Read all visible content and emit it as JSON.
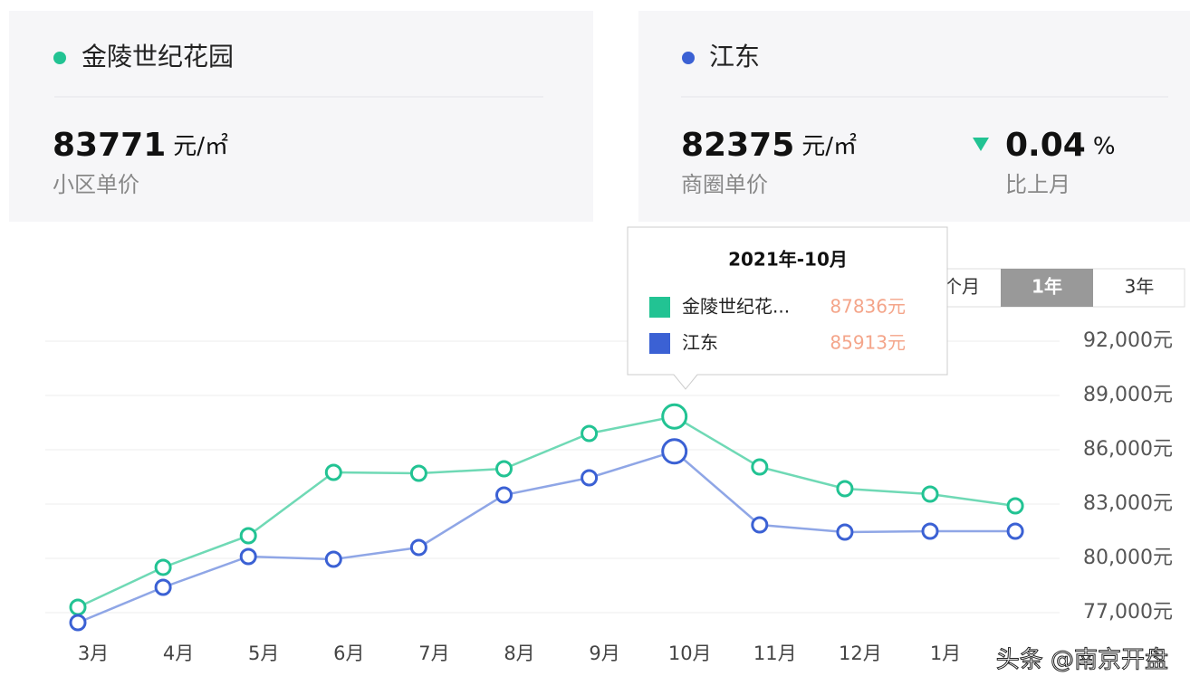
{
  "cards": [
    {
      "price": 83771,
      "unit": "元/㎡",
      "label": "小区单价"
    },
    {
      "price": 82375,
      "unit": "元/㎡",
      "label": "商圈单价",
      "change": 0.04,
      "change_unit": "%",
      "change_label": "比上月"
    }
  ],
  "range_buttons": [
    "个月",
    "1年",
    "3年"
  ],
  "watermark": "头条 @南京开盘",
  "chart_data": {
    "type": "line",
    "categories": [
      "3月",
      "4月",
      "5月",
      "6月",
      "7月",
      "8月",
      "9月",
      "10月",
      "11月",
      "12月",
      "1月",
      null
    ],
    "series": [
      {
        "name": "金陵世纪花园",
        "color": "#22c393",
        "line_color": "#6fd9b5",
        "values": [
          77300,
          79500,
          81250,
          84750,
          84700,
          84950,
          86900,
          87836,
          85050,
          83850,
          83550,
          82900
        ],
        "value_labels": [
          null,
          null,
          null,
          null,
          null,
          null,
          null,
          "87836元",
          null,
          null,
          null,
          null
        ]
      },
      {
        "name": "江东",
        "color": "#3b61d4",
        "line_color": "#8fa6e6",
        "values": [
          76450,
          78400,
          80100,
          79950,
          80600,
          83500,
          84450,
          85913,
          81850,
          81450,
          81500,
          81500
        ],
        "value_labels": [
          null,
          null,
          null,
          null,
          null,
          null,
          null,
          "85913元",
          null,
          null,
          null,
          null
        ]
      }
    ],
    "tooltip": {
      "title": "2021年-10月",
      "items": [
        "金陵世纪花...",
        "江东"
      ]
    },
    "ylim": [
      76000,
      92000
    ],
    "yticks": [
      {
        "value": 77000,
        "label": "77,000元"
      },
      {
        "value": 80000,
        "label": "80,000元"
      },
      {
        "value": 83000,
        "label": "83,000元"
      },
      {
        "value": 86000,
        "label": "86,000元"
      },
      {
        "value": 89000,
        "label": "89,000元"
      },
      {
        "value": 92000,
        "label": "92,000元"
      }
    ],
    "grid": true
  }
}
